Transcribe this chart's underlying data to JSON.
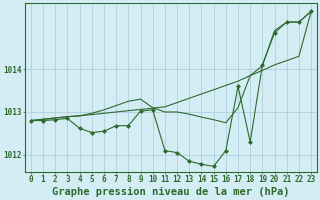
{
  "x": [
    0,
    1,
    2,
    3,
    4,
    5,
    6,
    7,
    8,
    9,
    10,
    11,
    12,
    13,
    14,
    15,
    16,
    17,
    18,
    19,
    20,
    21,
    22,
    23
  ],
  "line1": [
    1012.8,
    1012.8,
    1012.82,
    1012.85,
    1012.62,
    1012.52,
    1012.55,
    1012.68,
    1012.68,
    1013.02,
    1013.05,
    1012.1,
    1012.05,
    1011.85,
    1011.78,
    1011.73,
    1012.1,
    1013.6,
    1012.3,
    1014.1,
    1014.85,
    1015.1,
    1015.1,
    1015.35
  ],
  "line2": [
    1012.8,
    1012.83,
    1012.86,
    1012.89,
    1012.91,
    1012.94,
    1012.97,
    1013.0,
    1013.03,
    1013.06,
    1013.09,
    1013.12,
    1013.22,
    1013.32,
    1013.42,
    1013.52,
    1013.62,
    1013.72,
    1013.85,
    1013.97,
    1014.1,
    1014.2,
    1014.3,
    1015.35
  ],
  "line3": [
    1012.8,
    1012.83,
    1012.86,
    1012.89,
    1012.91,
    1012.97,
    1013.05,
    1013.15,
    1013.25,
    1013.3,
    1013.1,
    1013.0,
    1013.0,
    1012.95,
    1012.88,
    1012.82,
    1012.75,
    1013.1,
    1013.85,
    1014.08,
    1014.9,
    1015.1,
    1015.1,
    1015.35
  ],
  "bg_color": "#d4edf5",
  "grid_color": "#aac8d8",
  "line_color": "#2d6a2d",
  "marker_color": "#2d6a2d",
  "xlabel": "Graphe pression niveau de la mer (hPa)",
  "ylim": [
    1011.6,
    1015.55
  ],
  "yticks": [
    1012,
    1013,
    1014
  ],
  "xticks": [
    0,
    1,
    2,
    3,
    4,
    5,
    6,
    7,
    8,
    9,
    10,
    11,
    12,
    13,
    14,
    15,
    16,
    17,
    18,
    19,
    20,
    21,
    22,
    23
  ],
  "tick_label_fontsize": 5.5,
  "xlabel_fontsize": 7.5
}
